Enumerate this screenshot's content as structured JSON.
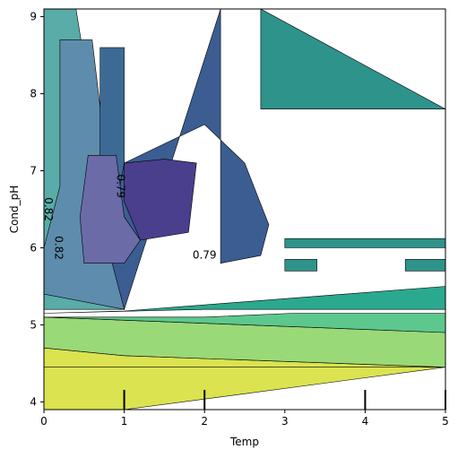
{
  "chart_data": {
    "type": "contour",
    "xlabel": "Temp",
    "ylabel": "Cond_pH",
    "xlim": [
      0,
      5
    ],
    "ylim": [
      3.9,
      9.1
    ],
    "x_ticks": [
      0,
      1,
      2,
      3,
      4,
      5
    ],
    "y_ticks": [
      4,
      5,
      6,
      7,
      8,
      9
    ],
    "colormap": "viridis",
    "grid": false,
    "legend": "none",
    "rug_x": [
      1,
      2,
      4,
      5
    ],
    "contour_labels": [
      {
        "text": "0.79",
        "x": 0.95,
        "y": 6.8,
        "rotation": 90
      },
      {
        "text": "0.79",
        "x": 2.0,
        "y": 5.9,
        "rotation": 0
      },
      {
        "text": "0.82",
        "x": 0.05,
        "y": 6.5,
        "rotation": 90
      },
      {
        "text": "0.82",
        "x": 0.18,
        "y": 6.0,
        "rotation": 90
      }
    ],
    "regions": [
      {
        "color": "#dbe350",
        "points": [
          [
            0,
            3.9
          ],
          [
            1,
            3.9
          ],
          [
            5,
            4.45
          ],
          [
            0,
            4.45
          ]
        ]
      },
      {
        "color": "#dbe350",
        "points": [
          [
            0,
            4.45
          ],
          [
            5,
            4.45
          ],
          [
            1,
            4.6
          ],
          [
            0,
            4.7
          ]
        ]
      },
      {
        "color": "#9ad977",
        "points": [
          [
            0,
            4.7
          ],
          [
            1,
            4.6
          ],
          [
            5,
            4.45
          ],
          [
            5,
            4.9
          ],
          [
            0,
            5.1
          ]
        ]
      },
      {
        "color": "#5cc88d",
        "points": [
          [
            0,
            5.1
          ],
          [
            2,
            5.1
          ],
          [
            3.1,
            5.15
          ],
          [
            5,
            5.15
          ],
          [
            5,
            4.9
          ],
          [
            0,
            5.1
          ]
        ]
      },
      {
        "color": "#2aa98e",
        "points": [
          [
            0,
            5.15
          ],
          [
            1,
            5.18
          ],
          [
            5,
            5.5
          ],
          [
            5,
            5.2
          ],
          [
            2,
            5.2
          ],
          [
            0,
            5.15
          ]
        ]
      },
      {
        "color": "#2e938b",
        "points": [
          [
            3,
            6.0
          ],
          [
            5,
            6.0
          ],
          [
            5,
            6.12
          ],
          [
            3,
            6.12
          ]
        ]
      },
      {
        "color": "#2e938b",
        "points": [
          [
            3,
            5.7
          ],
          [
            3.4,
            5.7
          ],
          [
            3.4,
            5.85
          ],
          [
            3,
            5.85
          ]
        ]
      },
      {
        "color": "#2e938b",
        "points": [
          [
            4.5,
            5.7
          ],
          [
            5,
            5.7
          ],
          [
            5,
            5.85
          ],
          [
            4.5,
            5.85
          ]
        ]
      },
      {
        "color": "#2e938b",
        "points": [
          [
            2.7,
            9.1
          ],
          [
            5,
            7.8
          ],
          [
            3,
            7.8
          ],
          [
            2.7,
            7.8
          ]
        ]
      },
      {
        "color": "#5aaca8",
        "points": [
          [
            0,
            9.1
          ],
          [
            0.4,
            9.1
          ],
          [
            1,
            5.2
          ],
          [
            0,
            5.2
          ]
        ]
      },
      {
        "color": "#5e8cac",
        "points": [
          [
            0.2,
            8.7
          ],
          [
            0.6,
            8.7
          ],
          [
            1,
            5.2
          ],
          [
            0,
            5.4
          ],
          [
            0,
            6.0
          ],
          [
            0.2,
            6.8
          ]
        ]
      },
      {
        "color": "#3d6a95",
        "points": [
          [
            0.7,
            8.6
          ],
          [
            1,
            8.6
          ],
          [
            1,
            6.0
          ],
          [
            0.7,
            6.0
          ]
        ]
      },
      {
        "color": "#3b5d91",
        "points": [
          [
            2.2,
            9.1
          ],
          [
            1,
            5.2
          ],
          [
            0.8,
            6.0
          ],
          [
            1.0,
            7.1
          ],
          [
            2.0,
            7.6
          ],
          [
            2.5,
            7.1
          ],
          [
            2.8,
            6.3
          ],
          [
            2.7,
            5.9
          ],
          [
            2.2,
            5.8
          ]
        ]
      },
      {
        "color": "#6b6ba8",
        "points": [
          [
            0.55,
            7.2
          ],
          [
            0.9,
            7.2
          ],
          [
            1,
            6.4
          ],
          [
            1.2,
            6.1
          ],
          [
            1,
            5.8
          ],
          [
            0.5,
            5.8
          ],
          [
            0.45,
            6.4
          ]
        ]
      },
      {
        "color": "#4a3f8c",
        "points": [
          [
            1.0,
            7.1
          ],
          [
            1.5,
            7.15
          ],
          [
            1.9,
            7.1
          ],
          [
            1.8,
            6.2
          ],
          [
            1.2,
            6.1
          ],
          [
            1.0,
            6.6
          ]
        ]
      }
    ]
  }
}
